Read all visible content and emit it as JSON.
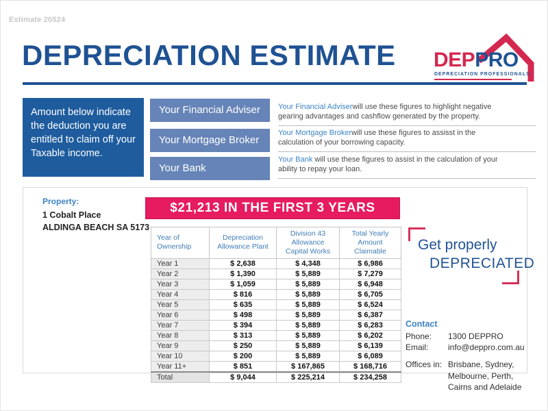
{
  "page": {
    "estimate_number": "Estimate 20524",
    "title": "DEPRECIATION ESTIMATE"
  },
  "logo": {
    "dep": "DEP",
    "pro": "PRO",
    "tagline": "DEPRECIATION PROFESSIONALS"
  },
  "intro": {
    "text": "Amount below indicate the deduction you are entitled to claim off your Taxable income."
  },
  "advisers": [
    {
      "label": "Your Financial Adviser",
      "lead": "Your Financial Adviser",
      "desc": "will use these figures to highlight negative gearing advantages and cashflow generated by the property."
    },
    {
      "label": "Your Mortgage Broker",
      "lead": "Your Mortgage Broker",
      "desc": "will use these figures to assisst in the calculation of your borrowing capacity."
    },
    {
      "label": "Your Bank",
      "lead": "Your Bank",
      "desc": " will use these figures to assist in the calculation of your ability to repay your loan."
    }
  ],
  "property": {
    "label": "Property:",
    "line1": "1 Cobalt Place",
    "line2": "ALDINGA BEACH SA 5173"
  },
  "banner": {
    "text": "$21,213 IN THE FIRST 3 YEARS"
  },
  "table": {
    "headers": [
      "Year of\nOwnership",
      "Depreciation\nAllowance Plant",
      "Division 43 Allowance\nCapital Works",
      "Total Yearly\nAmount Claimable"
    ],
    "rows": [
      [
        "Year 1",
        "$ 2,638",
        "$ 4,348",
        "$ 6,986"
      ],
      [
        "Year 2",
        "$ 1,390",
        "$ 5,889",
        "$ 7,279"
      ],
      [
        "Year 3",
        "$ 1,059",
        "$ 5,889",
        "$ 6,948"
      ],
      [
        "Year 4",
        "$ 816",
        "$ 5,889",
        "$ 6,705"
      ],
      [
        "Year 5",
        "$ 635",
        "$ 5,889",
        "$ 6,524"
      ],
      [
        "Year 6",
        "$ 498",
        "$ 5,889",
        "$ 6,387"
      ],
      [
        "Year 7",
        "$ 394",
        "$ 5,889",
        "$ 6,283"
      ],
      [
        "Year 8",
        "$ 313",
        "$ 5,889",
        "$ 6,202"
      ],
      [
        "Year 9",
        "$ 250",
        "$ 5,889",
        "$ 6,139"
      ],
      [
        "Year 10",
        "$ 200",
        "$ 5,889",
        "$ 6,089"
      ],
      [
        "Year 11+",
        "$ 851",
        "$ 167,865",
        "$ 168,716"
      ],
      [
        "Total",
        "$ 9,044",
        "$ 225,214",
        "$ 234,258"
      ]
    ]
  },
  "slogan": {
    "line1": "Get properly",
    "line2": "DEPRECIATED"
  },
  "contact": {
    "heading": "Contact",
    "phone_label": "Phone:",
    "phone": "1300 DEPPRO",
    "email_label": "Email:",
    "email": "info@deppro.com.au",
    "offices_label": "Offices in:",
    "offices": "Brisbane, Sydney, Melbourne, Perth, Cairns and Adelaide"
  },
  "colors": {
    "brand_blue": "#1f5293",
    "box_blue": "#1e5c9e",
    "bar_blue": "#6684b7",
    "link_blue": "#3d83c4",
    "accent_pink": "#e61b60",
    "logo_red": "#d42850",
    "bracket_pink": "#d63059"
  }
}
